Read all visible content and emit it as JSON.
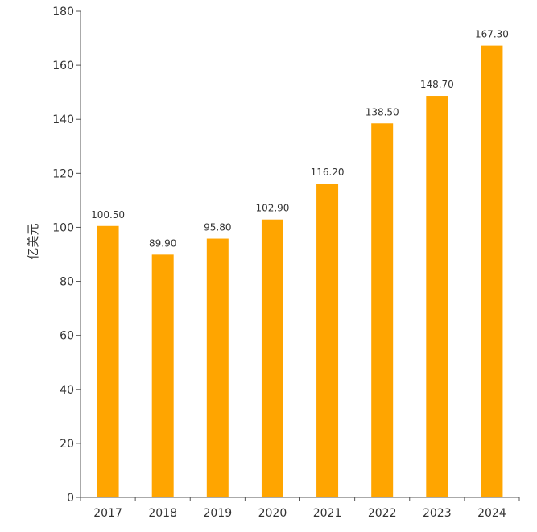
{
  "chart_data": {
    "type": "bar",
    "categories": [
      "2017",
      "2018",
      "2019",
      "2020",
      "2021",
      "2022",
      "2023",
      "2024"
    ],
    "values": [
      100.5,
      89.9,
      95.8,
      102.9,
      116.2,
      138.5,
      148.7,
      167.3
    ],
    "value_labels": [
      "100.50",
      "89.90",
      "95.80",
      "102.90",
      "116.20",
      "138.50",
      "148.70",
      "167.30"
    ],
    "ylabel": "亿美元",
    "xlabel": "",
    "ylim": [
      0,
      180
    ],
    "yticks": [
      0,
      20,
      40,
      60,
      80,
      100,
      120,
      140,
      160,
      180
    ],
    "grid": false,
    "legend": "none",
    "bar_color": "#FFA500",
    "axis_color": "#555555",
    "text_color": "#333333"
  }
}
